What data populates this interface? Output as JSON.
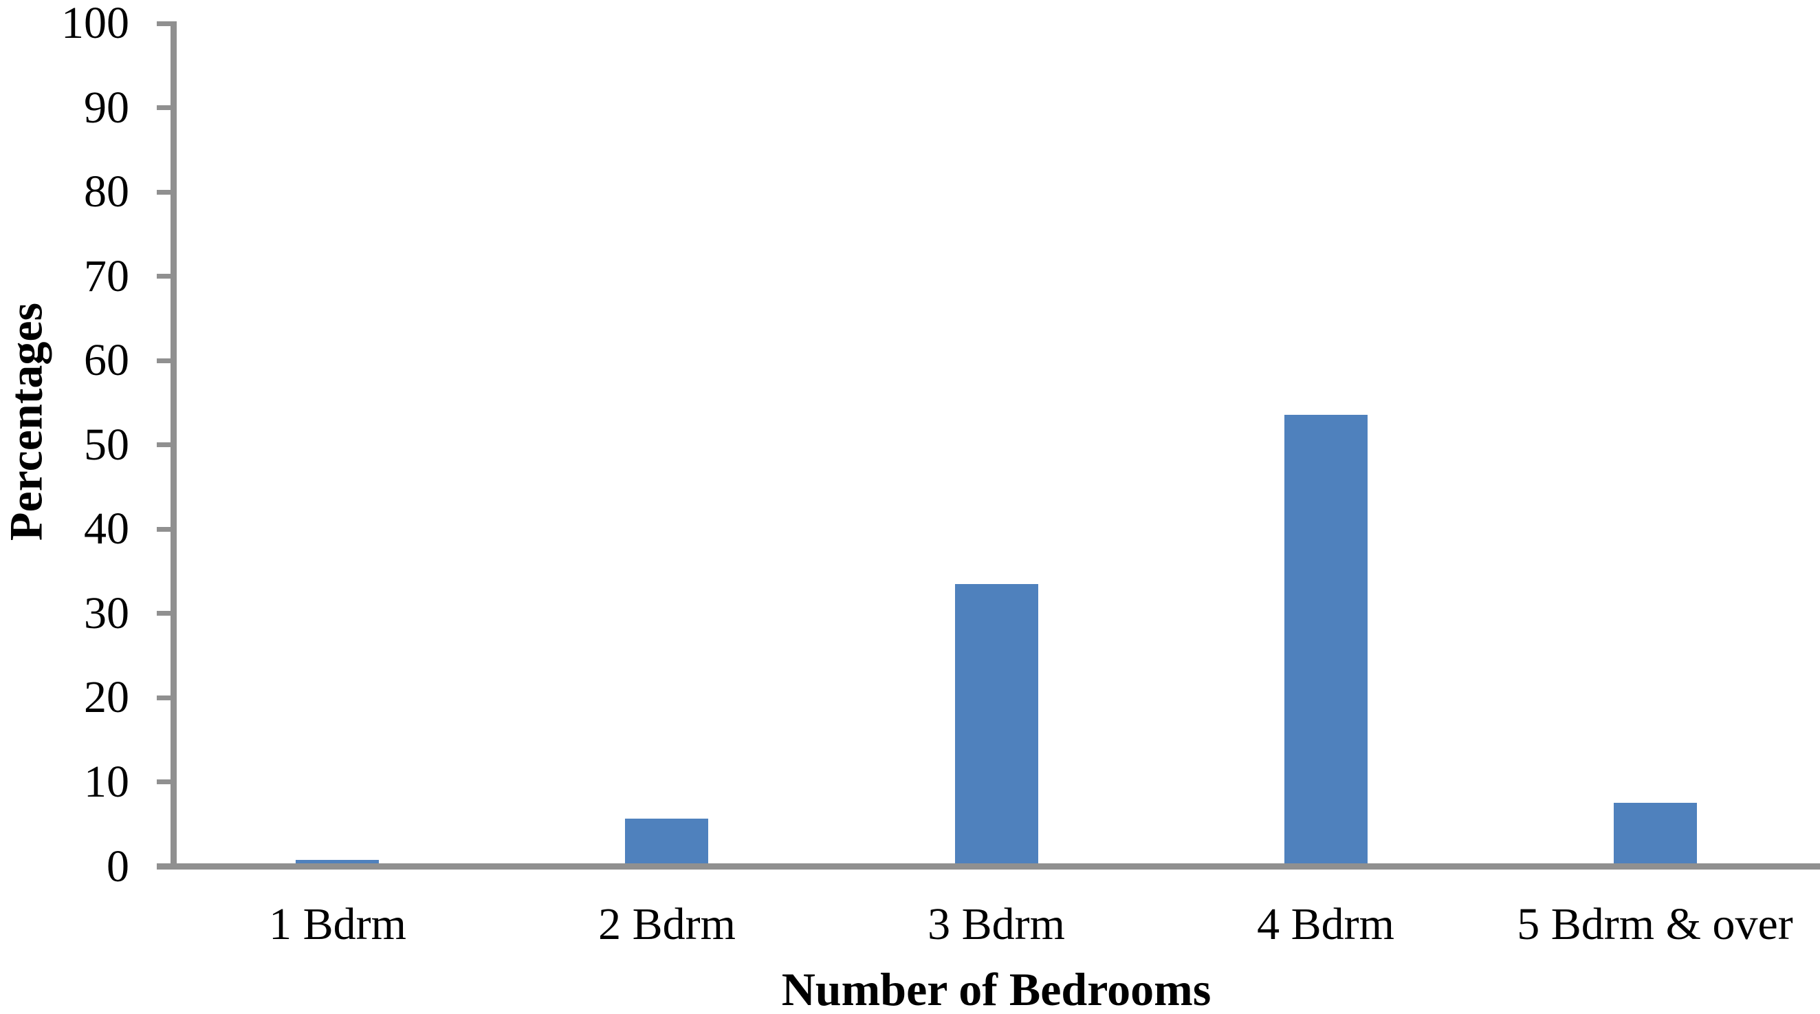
{
  "chart_data": {
    "type": "bar",
    "title": "",
    "xlabel": "Number of Bedrooms",
    "ylabel": "Percentages",
    "categories": [
      "1 Bdrm",
      "2 Bdrm",
      "3 Bdrm",
      "4 Bdrm",
      "5 Bdrm & over"
    ],
    "values": [
      0.4,
      5.3,
      33.1,
      53.2,
      7.2
    ],
    "ylim": [
      0,
      100
    ],
    "ytick_step": 10,
    "yticks": [
      0,
      10,
      20,
      30,
      40,
      50,
      60,
      70,
      80,
      90,
      100
    ],
    "grid": false,
    "legend": "none",
    "background_color": "#ffffff",
    "bar_color": "#4F81BD",
    "axis_color": "#909090",
    "text_color": "#000000"
  }
}
